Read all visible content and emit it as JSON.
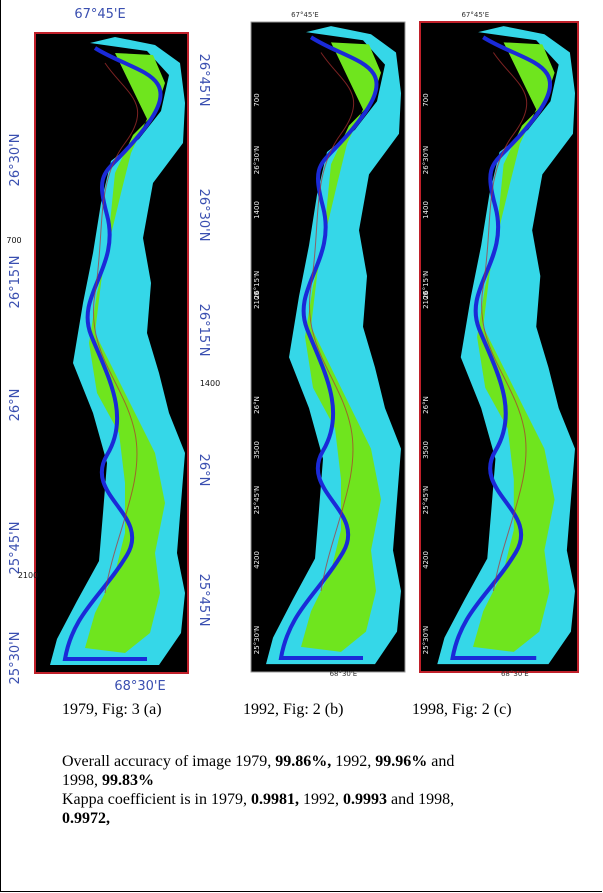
{
  "panels": [
    {
      "labels": [
        "67°45'E",
        "26°45'N",
        "26°30'N",
        "26°30'N",
        "700",
        "26°15'N",
        "26°15'N",
        "1400",
        "26°N",
        "26°N",
        "25°45'N",
        "2100",
        "25°45'N",
        "25°30'N",
        "68°30'E"
      ],
      "caption": "1979, Fig: 3 (a)"
    },
    {
      "labels": [
        "67°45'E",
        "700",
        "26°30'N",
        "1400",
        "26°15'N",
        "2100",
        "26°N",
        "3500",
        "25°45'N",
        "4200",
        "25°30'N",
        "68°30'E"
      ],
      "caption": "1992, Fig: 2 (b)"
    },
    {
      "labels": [
        "67°45'E",
        "700",
        "26°30'N",
        "1400",
        "26°15'N",
        "2100",
        "26°N",
        "3500",
        "25°45'N",
        "4200",
        "25°30'N",
        "68°30'E"
      ],
      "caption": "1998, Fig: 2 (c)"
    }
  ],
  "text": {
    "paragraphs": [
      [
        {
          "text": "Overall accuracy of image 1979, ",
          "bold": false
        },
        {
          "text": "99.86%,",
          "bold": true
        },
        {
          "text": " 1992, ",
          "bold": false
        },
        {
          "text": "99.96%",
          "bold": true
        },
        {
          "text": " and 1998, ",
          "bold": false
        },
        {
          "text": "99.83%",
          "bold": true
        }
      ],
      [
        {
          "text": "Kappa coefficient is in 1979, ",
          "bold": false
        },
        {
          "text": "0.9981,",
          "bold": true
        },
        {
          "text": " 1992, ",
          "bold": false
        },
        {
          "text": "0.9993",
          "bold": true
        },
        {
          "text": " and 1998, ",
          "bold": false
        },
        {
          "text": "0.9972,",
          "bold": true
        }
      ]
    ]
  }
}
